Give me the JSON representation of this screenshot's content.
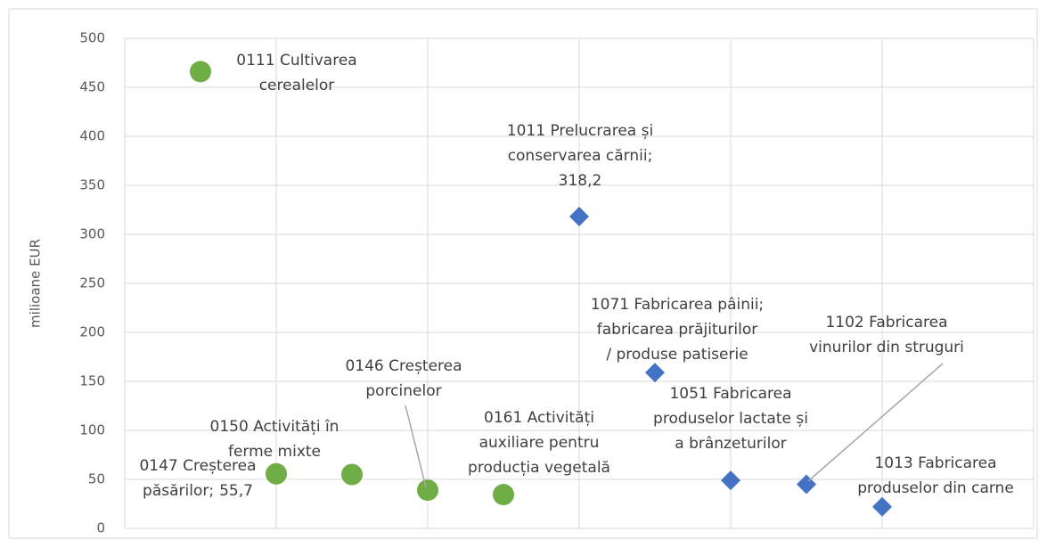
{
  "chart_data": {
    "type": "scatter",
    "y_label": "milioane EUR",
    "xlim": [
      0,
      12
    ],
    "xticks": [
      0,
      2,
      4,
      6,
      8,
      10,
      12
    ],
    "ylim": [
      0,
      500
    ],
    "yticks": [
      0,
      50,
      100,
      150,
      200,
      250,
      300,
      350,
      400,
      450,
      500
    ],
    "grid": true,
    "series": [
      {
        "color": "#70ad47",
        "marker": "circle",
        "x": [
          1,
          2,
          3,
          4,
          5
        ],
        "values": [
          466,
          55.7,
          55,
          39,
          34.5
        ],
        "value_labels": [
          null,
          "55,7",
          null,
          null,
          null
        ],
        "labels": [
          [
            "0111 Cultivarea",
            "cerealelor"
          ],
          [
            "0147 Creșterea",
            "păsărilor;"
          ],
          [
            "0150 Activități în",
            "ferme mixte"
          ],
          [
            "0146 Creșterea",
            "porcinelor"
          ],
          [
            "0161 Activități",
            "auxiliare pentru",
            "producția vegetală"
          ]
        ]
      },
      {
        "color": "#4472c4",
        "marker": "diamond",
        "x": [
          6,
          7,
          8,
          9,
          10
        ],
        "values": [
          318.2,
          159,
          49,
          45,
          22
        ],
        "value_labels": [
          "318,2",
          null,
          null,
          null,
          null
        ],
        "labels": [
          [
            "1011 Prelucrarea și",
            "conservarea cărnii;"
          ],
          [
            "1071 Fabricarea pâinii;",
            "fabricarea prăjiturilor",
            "/ produse patiserie"
          ],
          [
            "1051 Fabricarea",
            "produselor lactate și",
            "a brânzeturilor"
          ],
          [
            "1102 Fabricarea",
            "vinurilor din struguri"
          ],
          [
            "1013 Fabricarea",
            "produselor din carne"
          ]
        ]
      }
    ]
  }
}
